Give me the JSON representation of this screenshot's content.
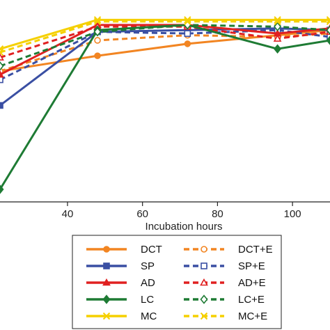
{
  "chart_data": {
    "type": "line",
    "xlabel": "Incubation hours",
    "ylabel": "",
    "title": "",
    "xlim": [
      22,
      110
    ],
    "ylim": [
      0,
      100
    ],
    "xticks": [
      40,
      60,
      80,
      100
    ],
    "grid": false,
    "legend_placement": "bottom",
    "x": [
      22,
      48,
      72,
      96,
      110
    ],
    "series": [
      {
        "name": "DCT",
        "color": "#F28522",
        "dashed": false,
        "marker": "circle",
        "values": [
          69,
          78,
          85,
          90,
          93
        ]
      },
      {
        "name": "DCT+E",
        "color": "#F28522",
        "dashed": true,
        "marker": "circle-open",
        "values": [
          69,
          87,
          90,
          89,
          91
        ]
      },
      {
        "name": "SP",
        "color": "#3A4FA3",
        "dashed": false,
        "marker": "square",
        "values": [
          49,
          92,
          93,
          94,
          93
        ]
      },
      {
        "name": "SP+E",
        "color": "#3A4FA3",
        "dashed": true,
        "marker": "square-open",
        "values": [
          64,
          92,
          91,
          93,
          89
        ]
      },
      {
        "name": "AD",
        "color": "#E02020",
        "dashed": false,
        "marker": "triangle",
        "values": [
          67,
          96,
          96,
          91,
          94
        ]
      },
      {
        "name": "AD+E",
        "color": "#E02020",
        "dashed": true,
        "marker": "triangle-open",
        "values": [
          77,
          95,
          95,
          88,
          92
        ]
      },
      {
        "name": "LC",
        "color": "#1E7B34",
        "dashed": false,
        "marker": "diamond",
        "values": [
          0,
          93,
          96,
          82,
          87
        ]
      },
      {
        "name": "LC+E",
        "color": "#1E7B34",
        "dashed": true,
        "marker": "diamond-open",
        "values": [
          72,
          92,
          96,
          95,
          93
        ]
      },
      {
        "name": "MC",
        "color": "#F5D000",
        "dashed": false,
        "marker": "x",
        "values": [
          82,
          99,
          99,
          99,
          99
        ]
      },
      {
        "name": "MC+E",
        "color": "#F5D000",
        "dashed": true,
        "marker": "x",
        "values": [
          80,
          98,
          98,
          98,
          98
        ]
      }
    ]
  }
}
